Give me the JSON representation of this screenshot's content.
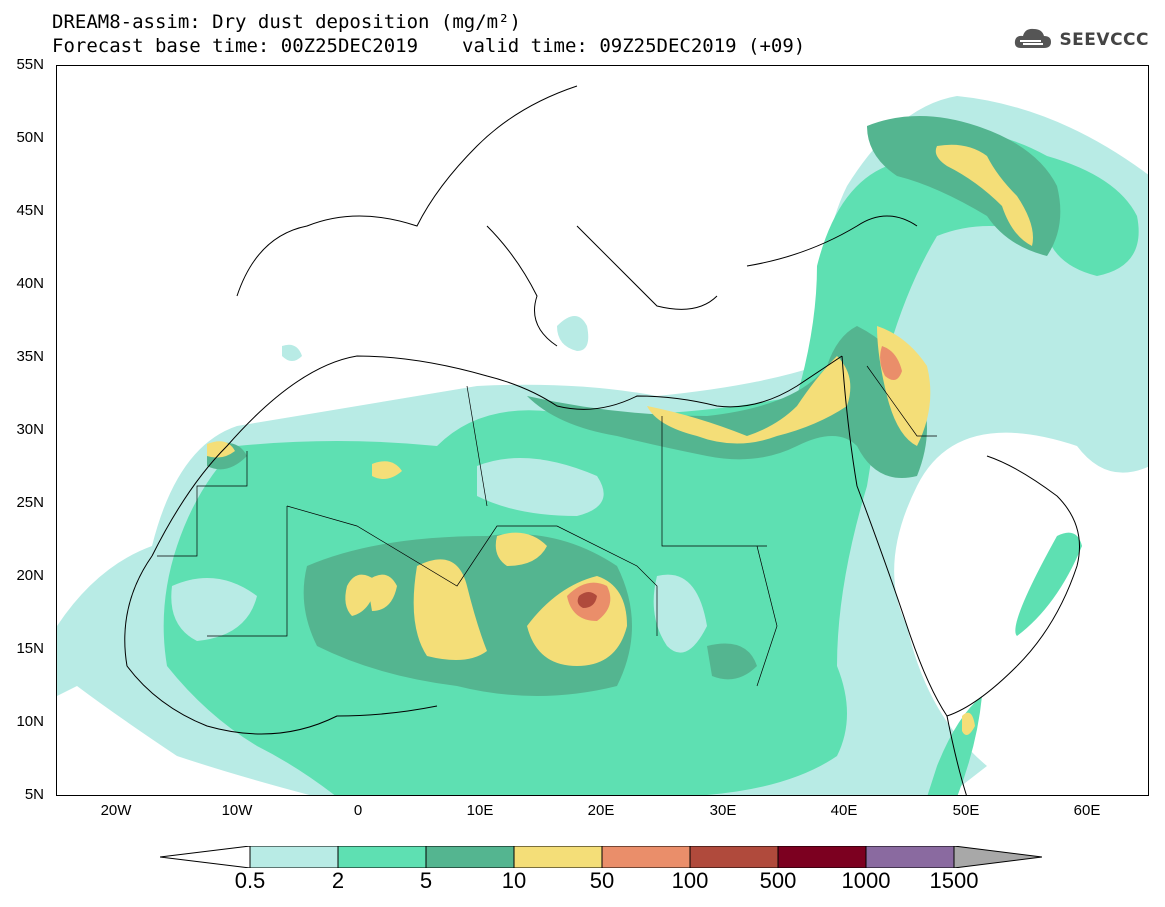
{
  "header": {
    "title_line1": "DREAM8-assim: Dry dust deposition (mg/m²)",
    "base_time": "Forecast base time: 00Z25DEC2019",
    "valid_time": "valid time: 09Z25DEC2019 (+09)"
  },
  "logo": {
    "icon": "cloud-icon",
    "text": "SEEVCCC"
  },
  "map": {
    "region": "North Africa / Middle East / Europe",
    "lon_range": [
      -25,
      65
    ],
    "lat_range": [
      5,
      55
    ],
    "lat_labels": [
      "55N",
      "50N",
      "45N",
      "40N",
      "35N",
      "30N",
      "25N",
      "20N",
      "15N",
      "10N",
      "5N"
    ],
    "lon_labels": [
      "20W",
      "10W",
      "0",
      "10E",
      "20E",
      "30E",
      "40E",
      "50E",
      "60E"
    ]
  },
  "legend": {
    "labels": [
      "0.5",
      "2",
      "5",
      "10",
      "50",
      "100",
      "500",
      "1000",
      "1500"
    ],
    "colors": [
      "#b8ebe5",
      "#5ee0b2",
      "#54b590",
      "#f4de78",
      "#ea8e6a",
      "#b04a3c",
      "#7c0020",
      "#8a6aa0",
      "#a8a8a8"
    ]
  }
}
